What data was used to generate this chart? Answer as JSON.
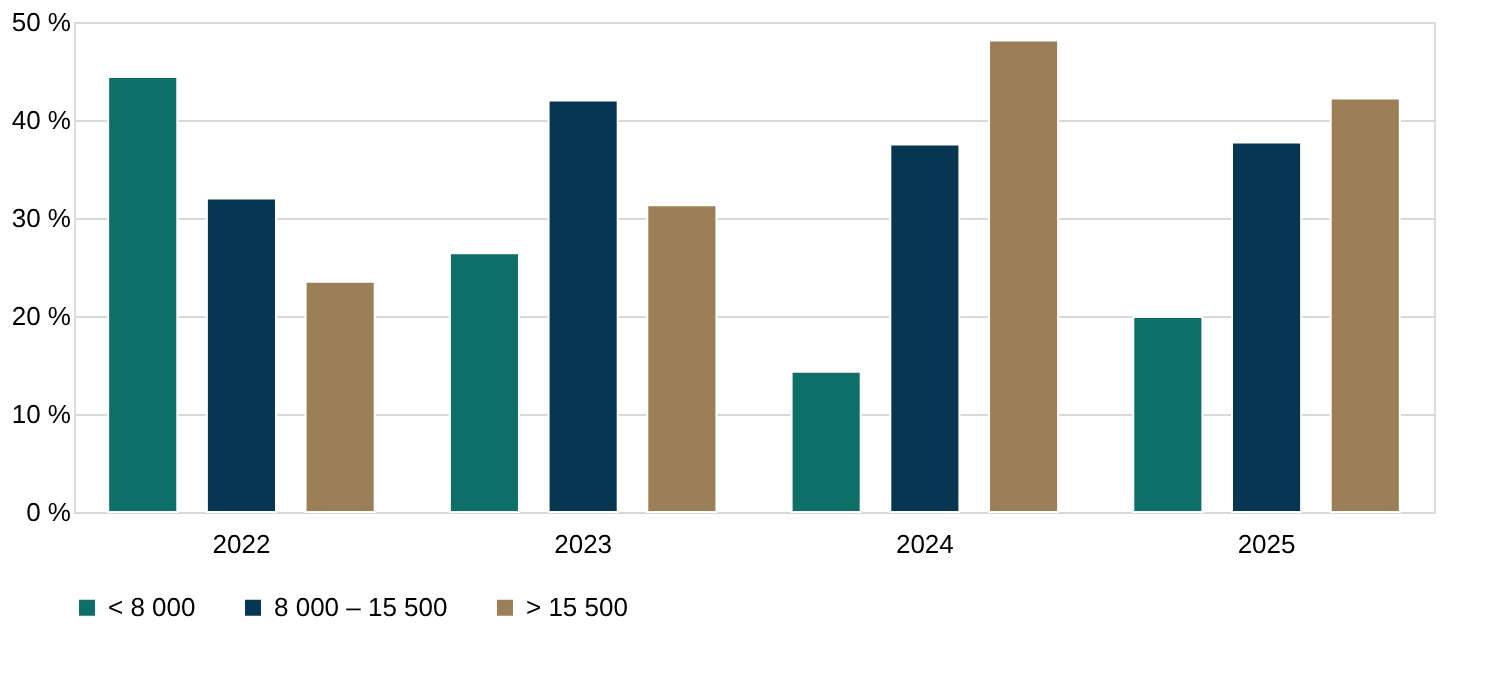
{
  "chart_data": {
    "type": "bar",
    "categories": [
      "2022",
      "2023",
      "2024",
      "2025"
    ],
    "series": [
      {
        "name": "< 8 000",
        "color": "#0e6e68",
        "values": [
          44.4,
          26.4,
          14.3,
          19.9
        ]
      },
      {
        "name": "8 000 – 15 500",
        "color": "#073653",
        "values": [
          32.0,
          42.0,
          37.5,
          37.7
        ]
      },
      {
        "name": "> 15 500",
        "color": "#9c7f57",
        "values": [
          23.5,
          31.3,
          48.1,
          42.2
        ]
      }
    ],
    "ylim": [
      0,
      50
    ],
    "yticks": [
      {
        "value": 0,
        "label": "0 %"
      },
      {
        "value": 10,
        "label": "10 %"
      },
      {
        "value": 20,
        "label": "20 %"
      },
      {
        "value": 30,
        "label": "30 %"
      },
      {
        "value": 40,
        "label": "40 %"
      },
      {
        "value": 50,
        "label": "50 %"
      }
    ],
    "grid": "y",
    "legend": "bottom"
  }
}
